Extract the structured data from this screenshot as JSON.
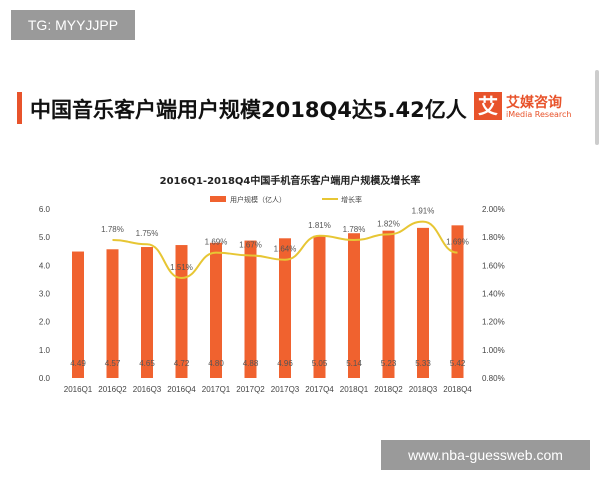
{
  "tag": "TG: MYYJJPP",
  "page_title": "中国音乐客户端用户规模2018Q4达5.42亿人",
  "logo": {
    "mark": "艾",
    "cn": "艾媒咨询",
    "en": "iMedia Research"
  },
  "watermark": "www.nba-guessweb.com",
  "colors": {
    "bar": "#f0622f",
    "line": "#e7c634",
    "accent": "#e8532b"
  },
  "chart_data": {
    "type": "bar+line",
    "title": "2016Q1-2018Q4中国手机音乐客户端用户规模及增长率",
    "categories": [
      "2016Q1",
      "2016Q2",
      "2016Q3",
      "2016Q4",
      "2017Q1",
      "2017Q2",
      "2017Q3",
      "2017Q4",
      "2018Q1",
      "2018Q2",
      "2018Q3",
      "2018Q4"
    ],
    "series": [
      {
        "name": "用户规模（亿人）",
        "type": "bar",
        "axis": "left",
        "values": [
          4.49,
          4.57,
          4.65,
          4.72,
          4.8,
          4.88,
          4.96,
          5.05,
          5.14,
          5.23,
          5.33,
          5.42
        ],
        "labels": [
          "4.49",
          "4.57",
          "4.65",
          "4.72",
          "4.80",
          "4.88",
          "4.96",
          "5.05",
          "5.14",
          "5.23",
          "5.33",
          "5.42"
        ]
      },
      {
        "name": "增长率",
        "type": "line",
        "axis": "right",
        "values": [
          null,
          1.78,
          1.75,
          1.51,
          1.69,
          1.67,
          1.64,
          1.81,
          1.78,
          1.82,
          1.91,
          1.69
        ],
        "labels": [
          "",
          "1.78%",
          "1.75%",
          "1.51%",
          "1.69%",
          "1.67%",
          "1.64%",
          "1.81%",
          "1.78%",
          "1.82%",
          "1.91%",
          "1.69%"
        ]
      }
    ],
    "yleft": {
      "range": [
        0,
        6
      ],
      "ticks": [
        "0.0",
        "1.0",
        "2.0",
        "3.0",
        "4.0",
        "5.0",
        "6.0"
      ]
    },
    "yright": {
      "range": [
        0.8,
        2.0
      ],
      "ticks": [
        "0.80%",
        "1.00%",
        "1.20%",
        "1.40%",
        "1.60%",
        "1.80%",
        "2.00%"
      ]
    },
    "legend": "top-center",
    "grid": false
  }
}
